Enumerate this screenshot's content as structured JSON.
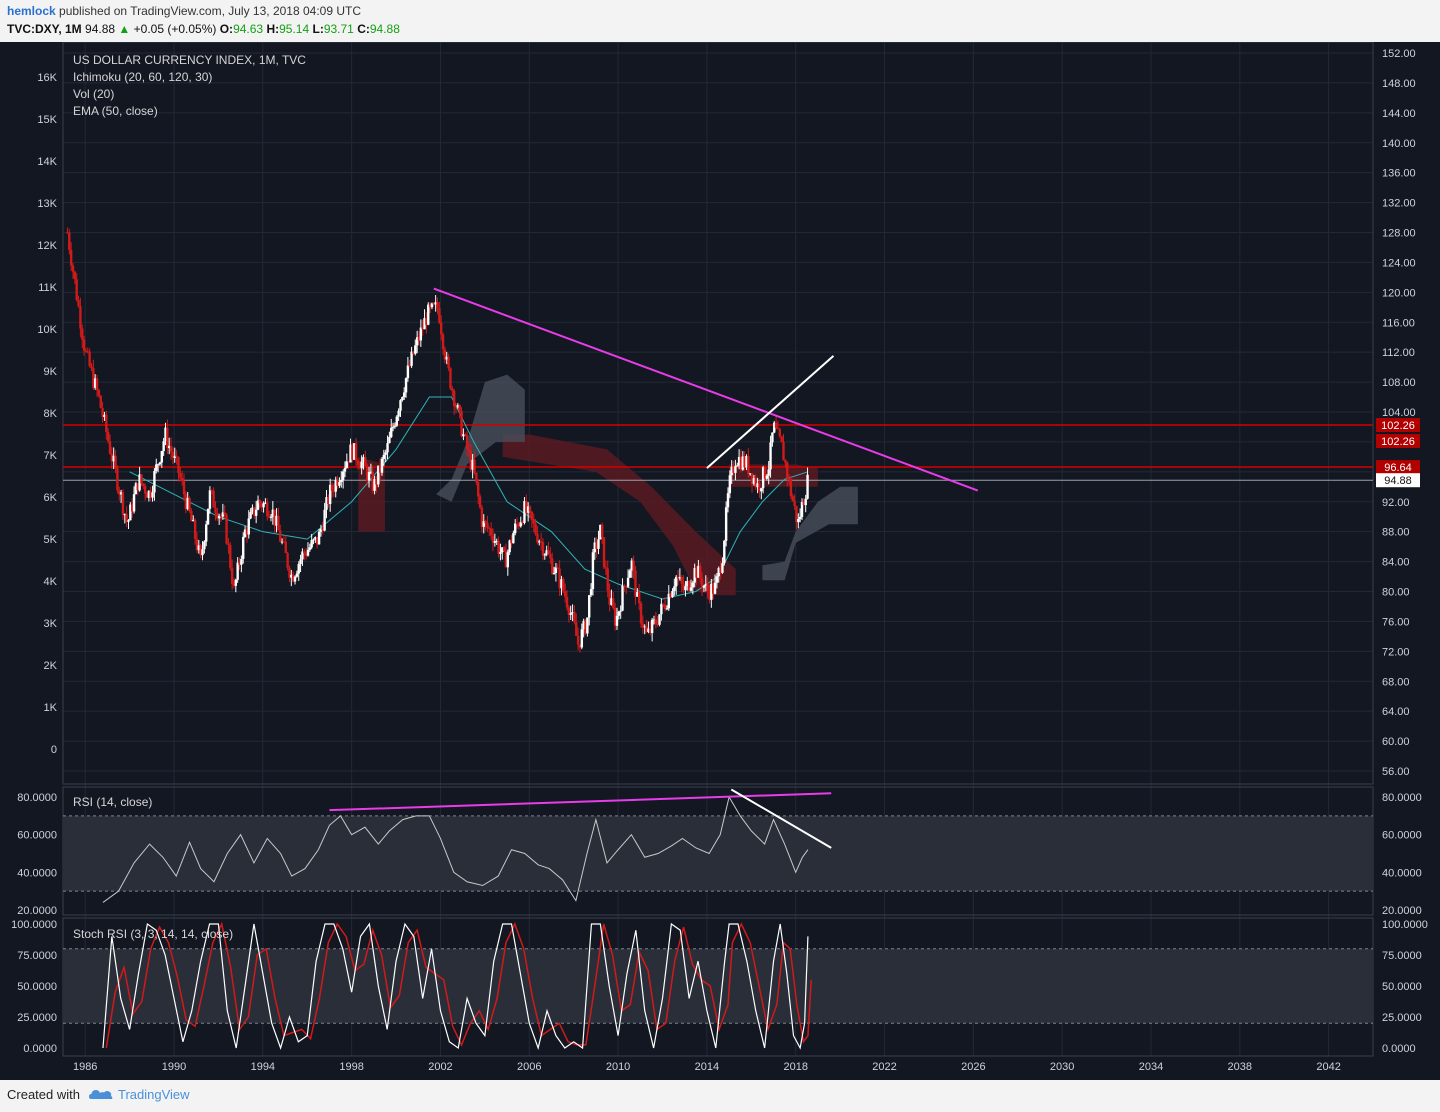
{
  "header": {
    "author": "hemlock",
    "published": "published on TradingView.com, July 13, 2018 04:09 UTC",
    "symbol": "TVC:DXY, 1M",
    "last": "94.88",
    "change": "+0.05 (+0.05%)",
    "o_label": "O:",
    "o": "94.63",
    "h_label": "H:",
    "h": "95.14",
    "l_label": "L:",
    "l": "93.71",
    "c_label": "C:",
    "c": "94.88"
  },
  "legend": {
    "title": "US DOLLAR CURRENCY INDEX, 1M, TVC",
    "ichimoku": "Ichimoku (20, 60, 120, 30)",
    "vol": "Vol (20)",
    "ema": "EMA (50, close)",
    "rsi": "RSI (14, close)",
    "stoch": "Stoch RSI (3, 3, 14, 14, close)"
  },
  "footer": {
    "created": "Created with",
    "brand": "TradingView"
  },
  "colors": {
    "background": "#131722",
    "up_candle": "#ffffff",
    "down_candle": "#d11a1a",
    "trendline": "#e83ce8",
    "level_line": "#d40000",
    "ema": "#2fb3b8",
    "cloud_bear": "#5a1a22",
    "cloud_bull": "#4a4f5c"
  },
  "chart_data": [
    {
      "type": "candlestick",
      "title": "US DOLLAR CURRENCY INDEX, 1M, TVC",
      "x_ticks": [
        "1986",
        "1990",
        "1994",
        "1998",
        "2002",
        "2006",
        "2010",
        "2014",
        "2018",
        "2022",
        "2026",
        "2030",
        "2034",
        "2038",
        "2042"
      ],
      "y_right_ticks": [
        "152.00",
        "148.00",
        "144.00",
        "140.00",
        "136.00",
        "132.00",
        "128.00",
        "124.00",
        "120.00",
        "116.00",
        "112.00",
        "108.00",
        "104.00",
        "100.00",
        "96.00",
        "92.00",
        "88.00",
        "84.00",
        "80.00",
        "76.00",
        "72.00",
        "68.00",
        "64.00",
        "60.00",
        "56.00"
      ],
      "y_left_ticks": [
        "16K",
        "15K",
        "14K",
        "13K",
        "12K",
        "11K",
        "10K",
        "9K",
        "8K",
        "7K",
        "6K",
        "5K",
        "4K",
        "3K",
        "2K",
        "1K",
        "0"
      ],
      "xlim": [
        1985.0,
        2044.0
      ],
      "ylim": [
        54.0,
        152.0
      ],
      "price_path": [
        [
          1985.2,
          128.0
        ],
        [
          1985.5,
          122.0
        ],
        [
          1986.0,
          112.0
        ],
        [
          1986.6,
          106.0
        ],
        [
          1987.2,
          98.0
        ],
        [
          1987.9,
          89.0
        ],
        [
          1988.4,
          95.0
        ],
        [
          1988.9,
          93.0
        ],
        [
          1989.6,
          101.0
        ],
        [
          1990.2,
          96.0
        ],
        [
          1990.9,
          88.0
        ],
        [
          1991.2,
          84.0
        ],
        [
          1991.6,
          93.0
        ],
        [
          1992.3,
          89.0
        ],
        [
          1992.7,
          80.0
        ],
        [
          1993.2,
          88.0
        ],
        [
          1993.8,
          92.0
        ],
        [
          1994.4,
          91.0
        ],
        [
          1994.9,
          86.0
        ],
        [
          1995.3,
          82.0
        ],
        [
          1995.8,
          85.0
        ],
        [
          1996.5,
          87.0
        ],
        [
          1997.0,
          93.0
        ],
        [
          1997.5,
          96.0
        ],
        [
          1998.0,
          99.0
        ],
        [
          1998.5,
          97.0
        ],
        [
          1999.0,
          94.0
        ],
        [
          1999.6,
          99.0
        ],
        [
          2000.2,
          106.0
        ],
        [
          2000.8,
          112.0
        ],
        [
          2001.4,
          117.0
        ],
        [
          2001.9,
          118.0
        ],
        [
          2002.3,
          110.0
        ],
        [
          2002.7,
          105.0
        ],
        [
          2003.1,
          100.0
        ],
        [
          2003.5,
          96.0
        ],
        [
          2003.9,
          89.0
        ],
        [
          2004.3,
          88.0
        ],
        [
          2004.9,
          84.0
        ],
        [
          2005.3,
          88.0
        ],
        [
          2005.8,
          91.0
        ],
        [
          2006.3,
          88.0
        ],
        [
          2006.8,
          85.0
        ],
        [
          2007.3,
          82.0
        ],
        [
          2007.8,
          78.0
        ],
        [
          2008.2,
          73.0
        ],
        [
          2008.6,
          76.0
        ],
        [
          2008.9,
          85.0
        ],
        [
          2009.2,
          88.0
        ],
        [
          2009.6,
          79.0
        ],
        [
          2009.9,
          76.0
        ],
        [
          2010.3,
          81.0
        ],
        [
          2010.6,
          84.0
        ],
        [
          2010.9,
          78.0
        ],
        [
          2011.3,
          74.0
        ],
        [
          2011.7,
          76.0
        ],
        [
          2012.2,
          79.0
        ],
        [
          2012.6,
          82.0
        ],
        [
          2013.0,
          80.0
        ],
        [
          2013.5,
          83.0
        ],
        [
          2014.0,
          80.0
        ],
        [
          2014.4,
          80.5
        ],
        [
          2014.7,
          85.0
        ],
        [
          2015.0,
          94.0
        ],
        [
          2015.3,
          98.0
        ],
        [
          2015.8,
          97.0
        ],
        [
          2016.3,
          94.0
        ],
        [
          2016.8,
          97.0
        ],
        [
          2017.0,
          102.0
        ],
        [
          2017.4,
          99.0
        ],
        [
          2017.8,
          93.0
        ],
        [
          2018.1,
          89.0
        ],
        [
          2018.4,
          93.0
        ],
        [
          2018.55,
          94.88
        ]
      ],
      "ema50_path": [
        [
          1988.0,
          96.0
        ],
        [
          1990.0,
          93.0
        ],
        [
          1992.0,
          90.0
        ],
        [
          1994.0,
          88.0
        ],
        [
          1996.0,
          87.0
        ],
        [
          1998.0,
          92.0
        ],
        [
          2000.0,
          99.0
        ],
        [
          2001.5,
          106.0
        ],
        [
          2002.5,
          106.0
        ],
        [
          2003.5,
          100.0
        ],
        [
          2005.0,
          92.0
        ],
        [
          2007.0,
          88.0
        ],
        [
          2008.5,
          83.0
        ],
        [
          2010.0,
          81.0
        ],
        [
          2012.0,
          79.0
        ],
        [
          2013.5,
          80.0
        ],
        [
          2014.5,
          82.0
        ],
        [
          2015.5,
          88.0
        ],
        [
          2016.5,
          92.0
        ],
        [
          2017.5,
          95.0
        ],
        [
          2018.55,
          96.0
        ]
      ],
      "ichimoku_cloud_bear": [
        [
          1998.3,
          92.0
        ],
        [
          1998.3,
          98.0
        ],
        [
          1999.5,
          97.0
        ],
        [
          1999.5,
          88.0
        ],
        [
          1998.3,
          88.0
        ],
        [
          2004.8,
          98.0
        ],
        [
          2009.0,
          96.0
        ],
        [
          2011.0,
          92.0
        ],
        [
          2012.5,
          86.0
        ],
        [
          2013.5,
          80.0
        ],
        [
          2014.5,
          79.5
        ],
        [
          2015.3,
          79.5
        ],
        [
          2015.3,
          83.0
        ],
        [
          2013.5,
          88.0
        ],
        [
          2011.5,
          94.0
        ],
        [
          2009.5,
          99.0
        ],
        [
          2006.0,
          101.0
        ],
        [
          2004.8,
          101.0
        ],
        [
          2015.0,
          94.0
        ],
        [
          2015.0,
          97.0
        ],
        [
          2018.0,
          97.0
        ],
        [
          2019.0,
          96.5
        ],
        [
          2019.0,
          94.0
        ]
      ],
      "ichimoku_cloud_bull": [
        [
          2001.8,
          93.0
        ],
        [
          2002.5,
          95.0
        ],
        [
          2003.2,
          100.0
        ],
        [
          2004.0,
          108.0
        ],
        [
          2005.0,
          109.0
        ],
        [
          2005.8,
          107.0
        ],
        [
          2005.8,
          100.0
        ],
        [
          2004.5,
          100.0
        ],
        [
          2003.2,
          97.0
        ],
        [
          2002.5,
          92.0
        ],
        [
          2016.5,
          83.5
        ],
        [
          2017.5,
          84.0
        ],
        [
          2018.0,
          88.0
        ],
        [
          2019.0,
          92.0
        ],
        [
          2020.0,
          94.0
        ],
        [
          2020.8,
          94.0
        ],
        [
          2020.8,
          89.0
        ],
        [
          2019.5,
          89.0
        ],
        [
          2018.0,
          86.5
        ],
        [
          2017.5,
          81.5
        ],
        [
          2016.5,
          81.5
        ]
      ],
      "trendlines": [
        {
          "name": "magenta-resistance",
          "color": "#e83ce8",
          "from": [
            2001.7,
            120.5
          ],
          "to": [
            2026.2,
            93.5
          ]
        },
        {
          "name": "white-upper",
          "color": "#ffffff",
          "from": [
            2014.0,
            96.5
          ],
          "to": [
            2019.7,
            111.5
          ]
        }
      ],
      "levels": [
        {
          "label": "102.26",
          "value": 102.26
        },
        {
          "label": "96.64",
          "value": 96.64
        },
        {
          "label": "94.88",
          "value": 94.88
        }
      ]
    },
    {
      "type": "line",
      "title": "RSI (14, close)",
      "y_ticks": [
        "80.0000",
        "60.0000",
        "40.0000",
        "20.0000"
      ],
      "ylim": [
        18.0,
        86.0
      ],
      "band": [
        30,
        70
      ],
      "path": [
        [
          1986.8,
          24
        ],
        [
          1987.5,
          30
        ],
        [
          1988.2,
          45
        ],
        [
          1988.9,
          55
        ],
        [
          1989.5,
          48
        ],
        [
          1990.1,
          38
        ],
        [
          1990.7,
          56
        ],
        [
          1991.2,
          42
        ],
        [
          1991.8,
          35
        ],
        [
          1992.4,
          50
        ],
        [
          1993.0,
          60
        ],
        [
          1993.6,
          45
        ],
        [
          1994.2,
          58
        ],
        [
          1994.8,
          50
        ],
        [
          1995.3,
          38
        ],
        [
          1995.9,
          42
        ],
        [
          1996.5,
          52
        ],
        [
          1997.0,
          65
        ],
        [
          1997.5,
          70
        ],
        [
          1998.0,
          60
        ],
        [
          1998.6,
          64
        ],
        [
          1999.2,
          55
        ],
        [
          1999.7,
          62
        ],
        [
          2000.3,
          68
        ],
        [
          2000.9,
          70
        ],
        [
          2001.5,
          70
        ],
        [
          2002.0,
          58
        ],
        [
          2002.6,
          40
        ],
        [
          2003.2,
          35
        ],
        [
          2003.9,
          33
        ],
        [
          2004.6,
          38
        ],
        [
          2005.2,
          52
        ],
        [
          2005.8,
          50
        ],
        [
          2006.4,
          44
        ],
        [
          2006.9,
          42
        ],
        [
          2007.5,
          36
        ],
        [
          2008.1,
          25
        ],
        [
          2008.6,
          50
        ],
        [
          2009.0,
          68
        ],
        [
          2009.5,
          45
        ],
        [
          2010.0,
          52
        ],
        [
          2010.6,
          60
        ],
        [
          2011.2,
          48
        ],
        [
          2011.8,
          50
        ],
        [
          2012.4,
          54
        ],
        [
          2012.9,
          58
        ],
        [
          2013.5,
          53
        ],
        [
          2014.1,
          50
        ],
        [
          2014.6,
          60
        ],
        [
          2015.0,
          80
        ],
        [
          2015.5,
          70
        ],
        [
          2016.0,
          62
        ],
        [
          2016.6,
          55
        ],
        [
          2017.0,
          68
        ],
        [
          2017.5,
          55
        ],
        [
          2018.0,
          40
        ],
        [
          2018.3,
          48
        ],
        [
          2018.55,
          52
        ]
      ],
      "trendlines": [
        {
          "name": "rsi-magenta",
          "color": "#e83ce8",
          "from": [
            1997.0,
            73
          ],
          "to": [
            2019.6,
            82
          ]
        },
        {
          "name": "rsi-white",
          "color": "#ffffff",
          "from": [
            2015.1,
            84
          ],
          "to": [
            2019.6,
            53
          ]
        }
      ]
    },
    {
      "type": "line",
      "title": "Stoch RSI (3, 3, 14, 14, close)",
      "y_ticks": [
        "100.0000",
        "75.0000",
        "50.0000",
        "25.0000",
        "0.0000"
      ],
      "ylim": [
        -5.0,
        103.0
      ],
      "band": [
        20,
        80
      ],
      "k_path": [
        [
          1986.8,
          0
        ],
        [
          1987.2,
          90
        ],
        [
          1987.6,
          40
        ],
        [
          1988.0,
          15
        ],
        [
          1988.4,
          60
        ],
        [
          1988.8,
          100
        ],
        [
          1989.2,
          95
        ],
        [
          1989.6,
          75
        ],
        [
          1990.0,
          40
        ],
        [
          1990.4,
          5
        ],
        [
          1990.8,
          30
        ],
        [
          1991.2,
          70
        ],
        [
          1991.6,
          100
        ],
        [
          1992.0,
          100
        ],
        [
          1992.4,
          30
        ],
        [
          1992.8,
          0
        ],
        [
          1993.2,
          50
        ],
        [
          1993.6,
          100
        ],
        [
          1994.0,
          60
        ],
        [
          1994.4,
          20
        ],
        [
          1994.8,
          0
        ],
        [
          1995.2,
          25
        ],
        [
          1995.6,
          5
        ],
        [
          1996.0,
          10
        ],
        [
          1996.4,
          70
        ],
        [
          1996.8,
          100
        ],
        [
          1997.2,
          100
        ],
        [
          1997.6,
          80
        ],
        [
          1998.0,
          45
        ],
        [
          1998.4,
          90
        ],
        [
          1998.8,
          100
        ],
        [
          1999.2,
          50
        ],
        [
          1999.6,
          15
        ],
        [
          2000.0,
          70
        ],
        [
          2000.4,
          100
        ],
        [
          2000.8,
          90
        ],
        [
          2001.2,
          40
        ],
        [
          2001.6,
          80
        ],
        [
          2002.0,
          30
        ],
        [
          2002.4,
          5
        ],
        [
          2002.8,
          0
        ],
        [
          2003.2,
          40
        ],
        [
          2003.6,
          20
        ],
        [
          2004.0,
          10
        ],
        [
          2004.4,
          70
        ],
        [
          2004.8,
          100
        ],
        [
          2005.2,
          100
        ],
        [
          2005.6,
          60
        ],
        [
          2006.0,
          20
        ],
        [
          2006.4,
          0
        ],
        [
          2006.8,
          30
        ],
        [
          2007.2,
          10
        ],
        [
          2007.6,
          0
        ],
        [
          2008.0,
          5
        ],
        [
          2008.4,
          0
        ],
        [
          2008.8,
          100
        ],
        [
          2009.2,
          100
        ],
        [
          2009.6,
          50
        ],
        [
          2010.0,
          10
        ],
        [
          2010.4,
          60
        ],
        [
          2010.8,
          95
        ],
        [
          2011.2,
          30
        ],
        [
          2011.6,
          0
        ],
        [
          2012.0,
          40
        ],
        [
          2012.4,
          100
        ],
        [
          2012.8,
          95
        ],
        [
          2013.2,
          40
        ],
        [
          2013.6,
          70
        ],
        [
          2014.0,
          30
        ],
        [
          2014.4,
          0
        ],
        [
          2014.8,
          70
        ],
        [
          2015.0,
          100
        ],
        [
          2015.4,
          100
        ],
        [
          2015.8,
          70
        ],
        [
          2016.2,
          30
        ],
        [
          2016.6,
          0
        ],
        [
          2017.0,
          70
        ],
        [
          2017.3,
          100
        ],
        [
          2017.6,
          60
        ],
        [
          2017.9,
          10
        ],
        [
          2018.2,
          0
        ],
        [
          2018.4,
          20
        ],
        [
          2018.55,
          90
        ]
      ]
    }
  ]
}
